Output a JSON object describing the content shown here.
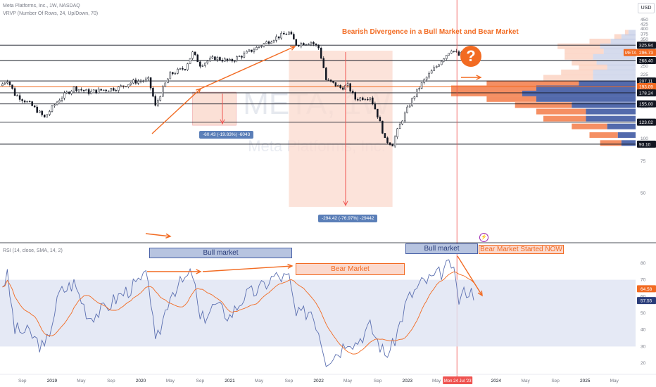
{
  "header": {
    "symbol_line": "Meta Platforms, Inc., 1W, NASDAQ",
    "indicator_line": "VRVP (Number Of Rows, 24, Up/Down, 70)",
    "rsi_line": "RSI (14, close, SMA, 14, 2)",
    "currency_button": "USD"
  },
  "watermark": {
    "ticker": "META, 1W",
    "name": "Meta Platforms, Inc."
  },
  "annotations": {
    "title": "Bearish Divergence in a Bull Market and Bear Market",
    "question_mark": "?",
    "bull_market_1": "Bull market",
    "bear_market": "Bear Market",
    "bull_market_2": "Bull market",
    "bear_market_now": "Bear Market Started NOW",
    "measure_small": "-60.43 (-19.83%) -6043",
    "measure_large": "-294.42 (-76.97%) -29442",
    "crosshair_date": "Mon 24 Jul '23"
  },
  "colors": {
    "orange": "#f26b22",
    "blue": "#4a62a8",
    "rsi_line": "#5b6fb0",
    "rsi_ma": "#f26b22",
    "bull_box": "#b7c4e0",
    "bear_box": "#fbd9cd",
    "crosshair": "#ef5350"
  },
  "chart_data": [
    {
      "type": "candlestick",
      "title": "Meta Platforms, Inc., 1W, NASDAQ",
      "ylim": [
        30,
        450
      ],
      "y_scale": "log",
      "price_axis_labels": [
        450,
        425,
        400,
        375,
        350,
        325,
        300,
        275,
        250,
        225,
        200,
        175,
        150,
        125,
        100,
        75,
        50
      ],
      "x_tick_labels": [
        "Sep",
        "2019",
        "May",
        "Sep",
        "2020",
        "May",
        "Sep",
        "2021",
        "May",
        "Sep",
        "2022",
        "May",
        "Sep",
        "2023",
        "May",
        "Sep",
        "2024",
        "May",
        "Sep",
        "2025",
        "May"
      ],
      "x_ticks_dates": [
        "2018-09",
        "2019-01",
        "2019-05",
        "2019-09",
        "2020-01",
        "2020-05",
        "2020-09",
        "2021-01",
        "2021-05",
        "2021-09",
        "2022-01",
        "2022-05",
        "2022-09",
        "2023-01",
        "2023-05",
        "2023-09",
        "2024-01",
        "2024-05",
        "2024-09",
        "2025-01",
        "2025-05"
      ],
      "close_path": [
        [
          "2018-06",
          195
        ],
        [
          "2018-07",
          210
        ],
        [
          "2018-08",
          175
        ],
        [
          "2018-10",
          155
        ],
        [
          "2018-12",
          130
        ],
        [
          "2019-02",
          165
        ],
        [
          "2019-04",
          190
        ],
        [
          "2019-06",
          180
        ],
        [
          "2019-08",
          185
        ],
        [
          "2019-10",
          190
        ],
        [
          "2019-12",
          205
        ],
        [
          "2020-02",
          210
        ],
        [
          "2020-03",
          150
        ],
        [
          "2020-05",
          225
        ],
        [
          "2020-07",
          245
        ],
        [
          "2020-08",
          295
        ],
        [
          "2020-09",
          255
        ],
        [
          "2020-11",
          278
        ],
        [
          "2021-01",
          265
        ],
        [
          "2021-03",
          290
        ],
        [
          "2021-05",
          320
        ],
        [
          "2021-07",
          355
        ],
        [
          "2021-09",
          382
        ],
        [
          "2021-10",
          330
        ],
        [
          "2021-12",
          340
        ],
        [
          "2022-01",
          315
        ],
        [
          "2022-02",
          210
        ],
        [
          "2022-04",
          190
        ],
        [
          "2022-05",
          195
        ],
        [
          "2022-06",
          165
        ],
        [
          "2022-08",
          170
        ],
        [
          "2022-10",
          98
        ],
        [
          "2022-11",
          93
        ],
        [
          "2023-01",
          145
        ],
        [
          "2023-03",
          200
        ],
        [
          "2023-05",
          250
        ],
        [
          "2023-07",
          310
        ],
        [
          "2023-08",
          286
        ],
        [
          "2023-09",
          300
        ],
        [
          "2023-10",
          296.73
        ]
      ],
      "horizontal_levels": [
        325.94,
        268.4,
        207.11,
        193.09,
        178.24,
        155.0,
        123.02,
        93.1
      ],
      "current_price": 296.73,
      "current_price_label": "META",
      "level_labels": [
        "325.94",
        "296.73",
        "268.40",
        "207.11",
        "193.09",
        "178.24",
        "155.00",
        "123.02",
        "93.10"
      ],
      "measure_small": {
        "from": "2020-08",
        "to": "2020-11",
        "change": -60.43,
        "pct": -19.83
      },
      "measure_large": {
        "from": "2021-09",
        "to": "2022-11",
        "change": -294.42,
        "pct": -76.97
      },
      "volume_profile": [
        {
          "price": 380,
          "up": 5,
          "down": 10
        },
        {
          "price": 360,
          "up": 10,
          "down": 20
        },
        {
          "price": 340,
          "up": 30,
          "down": 35
        },
        {
          "price": 320,
          "up": 60,
          "down": 50
        },
        {
          "price": 300,
          "up": 55,
          "down": 45
        },
        {
          "price": 280,
          "up": 40,
          "down": 60
        },
        {
          "price": 260,
          "up": 35,
          "down": 55
        },
        {
          "price": 245,
          "up": 40,
          "down": 40
        },
        {
          "price": 230,
          "up": 45,
          "down": 60
        },
        {
          "price": 215,
          "up": 70,
          "down": 60
        },
        {
          "price": 200,
          "up": 130,
          "down": 80
        },
        {
          "price": 188,
          "up": 120,
          "down": 140
        },
        {
          "price": 176,
          "up": 100,
          "down": 160
        },
        {
          "price": 164,
          "up": 70,
          "down": 140
        },
        {
          "price": 152,
          "up": 80,
          "down": 90
        },
        {
          "price": 140,
          "up": 70,
          "down": 70
        },
        {
          "price": 128,
          "up": 60,
          "down": 70
        },
        {
          "price": 116,
          "up": 50,
          "down": 40
        },
        {
          "price": 104,
          "up": 40,
          "down": 25
        },
        {
          "price": 94,
          "up": 30,
          "down": 20
        }
      ]
    },
    {
      "type": "line",
      "title": "RSI (14, close, SMA, 14, 2)",
      "ylim": [
        15,
        85
      ],
      "y_axis_labels": [
        80,
        70,
        60,
        50,
        40,
        30,
        20
      ],
      "band": [
        30,
        70
      ],
      "rsi_path": [
        [
          "2018-06",
          65
        ],
        [
          "2018-07",
          72
        ],
        [
          "2018-08",
          40
        ],
        [
          "2018-10",
          38
        ],
        [
          "2018-12",
          28
        ],
        [
          "2019-02",
          62
        ],
        [
          "2019-04",
          68
        ],
        [
          "2019-06",
          48
        ],
        [
          "2019-08",
          52
        ],
        [
          "2019-10",
          60
        ],
        [
          "2019-12",
          66
        ],
        [
          "2020-02",
          72
        ],
        [
          "2020-03",
          30
        ],
        [
          "2020-05",
          62
        ],
        [
          "2020-07",
          70
        ],
        [
          "2020-08",
          74
        ],
        [
          "2020-09",
          45
        ],
        [
          "2020-11",
          55
        ],
        [
          "2021-01",
          48
        ],
        [
          "2021-03",
          60
        ],
        [
          "2021-05",
          64
        ],
        [
          "2021-07",
          72
        ],
        [
          "2021-09",
          71
        ],
        [
          "2021-10",
          48
        ],
        [
          "2021-12",
          52
        ],
        [
          "2022-01",
          40
        ],
        [
          "2022-02",
          22
        ],
        [
          "2022-04",
          28
        ],
        [
          "2022-05",
          35
        ],
        [
          "2022-06",
          32
        ],
        [
          "2022-08",
          42
        ],
        [
          "2022-10",
          25
        ],
        [
          "2022-11",
          30
        ],
        [
          "2023-01",
          58
        ],
        [
          "2023-03",
          68
        ],
        [
          "2023-05",
          72
        ],
        [
          "2023-07",
          80
        ],
        [
          "2023-08",
          58
        ],
        [
          "2023-09",
          64
        ],
        [
          "2023-10",
          62
        ]
      ],
      "rsi_current": 64.58,
      "rsi_ma_current": 57.55,
      "value_labels": [
        "64.58",
        "57.55"
      ]
    }
  ]
}
